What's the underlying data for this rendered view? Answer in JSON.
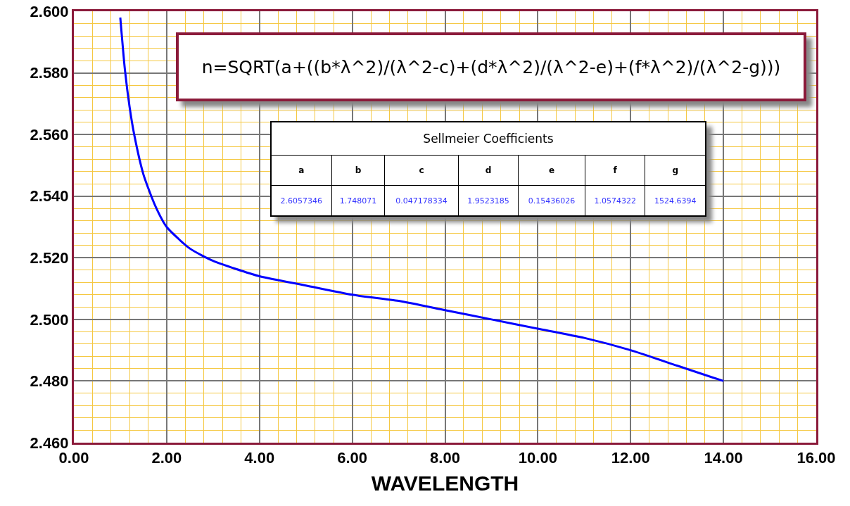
{
  "chart_data": {
    "type": "line",
    "xlabel": "WAVELENGTH",
    "x": [
      1,
      1.1,
      1.2,
      1.3,
      1.5,
      1.75,
      2,
      2.5,
      3,
      4,
      5,
      6,
      7,
      8,
      9,
      10,
      11,
      12,
      13,
      14
    ],
    "series": [
      {
        "color": "#0000ff",
        "values": [
          2.598,
          2.581,
          2.569,
          2.56,
          2.547,
          2.537,
          2.53,
          2.523,
          2.519,
          2.514,
          2.511,
          2.508,
          2.506,
          2.503,
          2.5,
          2.497,
          2.494,
          2.49,
          2.485,
          2.48
        ]
      }
    ],
    "xlim": [
      0,
      16
    ],
    "xticks": [
      {
        "value": 0,
        "label": "0.00"
      },
      {
        "value": 2,
        "label": "2.00"
      },
      {
        "value": 4,
        "label": "4.00"
      },
      {
        "value": 6,
        "label": "6.00"
      },
      {
        "value": 8,
        "label": "8.00"
      },
      {
        "value": 10,
        "label": "10.00"
      },
      {
        "value": 12,
        "label": "12.00"
      },
      {
        "value": 14,
        "label": "14.00"
      },
      {
        "value": 16,
        "label": "16.00"
      },
      {
        "value": 0.4,
        "label": null
      },
      {
        "value": 0.8,
        "label": null
      },
      {
        "value": 1.2,
        "label": null
      },
      {
        "value": 1.6,
        "label": null
      },
      {
        "value": 2.4,
        "label": null
      },
      {
        "value": 2.8,
        "label": null
      },
      {
        "value": 3.2,
        "label": null
      },
      {
        "value": 3.6,
        "label": null
      },
      {
        "value": 4.4,
        "label": null
      },
      {
        "value": 4.8,
        "label": null
      },
      {
        "value": 5.2,
        "label": null
      },
      {
        "value": 5.6,
        "label": null
      },
      {
        "value": 6.4,
        "label": null
      },
      {
        "value": 6.8,
        "label": null
      },
      {
        "value": 7.2,
        "label": null
      },
      {
        "value": 7.6,
        "label": null
      },
      {
        "value": 8.4,
        "label": null
      },
      {
        "value": 8.8,
        "label": null
      },
      {
        "value": 9.2,
        "label": null
      },
      {
        "value": 9.6,
        "label": null
      },
      {
        "value": 10.4,
        "label": null
      },
      {
        "value": 10.8,
        "label": null
      },
      {
        "value": 11.2,
        "label": null
      },
      {
        "value": 11.6,
        "label": null
      },
      {
        "value": 12.4,
        "label": null
      },
      {
        "value": 12.8,
        "label": null
      },
      {
        "value": 13.2,
        "label": null
      },
      {
        "value": 13.6,
        "label": null
      },
      {
        "value": 14.4,
        "label": null
      },
      {
        "value": 14.8,
        "label": null
      },
      {
        "value": 15.2,
        "label": null
      },
      {
        "value": 15.6,
        "label": null
      }
    ],
    "ylim": [
      2.46,
      2.6
    ],
    "yticks": [
      {
        "value": 2.46,
        "label": "2.460"
      },
      {
        "value": 2.48,
        "label": "2.480"
      },
      {
        "value": 2.5,
        "label": "2.500"
      },
      {
        "value": 2.52,
        "label": "2.520"
      },
      {
        "value": 2.54,
        "label": "2.540"
      },
      {
        "value": 2.56,
        "label": "2.560"
      },
      {
        "value": 2.58,
        "label": "2.580"
      },
      {
        "value": 2.6,
        "label": "2.600"
      },
      {
        "value": 2.464,
        "label": null
      },
      {
        "value": 2.468,
        "label": null
      },
      {
        "value": 2.472,
        "label": null
      },
      {
        "value": 2.476,
        "label": null
      },
      {
        "value": 2.484,
        "label": null
      },
      {
        "value": 2.488,
        "label": null
      },
      {
        "value": 2.492,
        "label": null
      },
      {
        "value": 2.496,
        "label": null
      },
      {
        "value": 2.504,
        "label": null
      },
      {
        "value": 2.508,
        "label": null
      },
      {
        "value": 2.512,
        "label": null
      },
      {
        "value": 2.516,
        "label": null
      },
      {
        "value": 2.524,
        "label": null
      },
      {
        "value": 2.528,
        "label": null
      },
      {
        "value": 2.532,
        "label": null
      },
      {
        "value": 2.536,
        "label": null
      },
      {
        "value": 2.544,
        "label": null
      },
      {
        "value": 2.548,
        "label": null
      },
      {
        "value": 2.552,
        "label": null
      },
      {
        "value": 2.556,
        "label": null
      },
      {
        "value": 2.564,
        "label": null
      },
      {
        "value": 2.568,
        "label": null
      },
      {
        "value": 2.572,
        "label": null
      },
      {
        "value": 2.576,
        "label": null
      },
      {
        "value": 2.584,
        "label": null
      },
      {
        "value": 2.588,
        "label": null
      },
      {
        "value": 2.592,
        "label": null
      },
      {
        "value": 2.596,
        "label": null
      }
    ],
    "grid": true,
    "legend": false,
    "marker": "none",
    "line_style": "solid",
    "annotations": [
      "n=SQRT(a+((b*λ^2)/(λ^2-c)+(d*λ^2)/(λ^2-e)+(f*λ^2)/(λ^2-g)))",
      "Sellmeier Coefficients",
      "a",
      "b",
      "c",
      "d",
      "e",
      "f",
      "g",
      "2.6057346",
      "1.748071",
      "0.047178334",
      "1.9523185",
      "0.15436026",
      "1.0574322",
      "1524.6394"
    ]
  }
}
